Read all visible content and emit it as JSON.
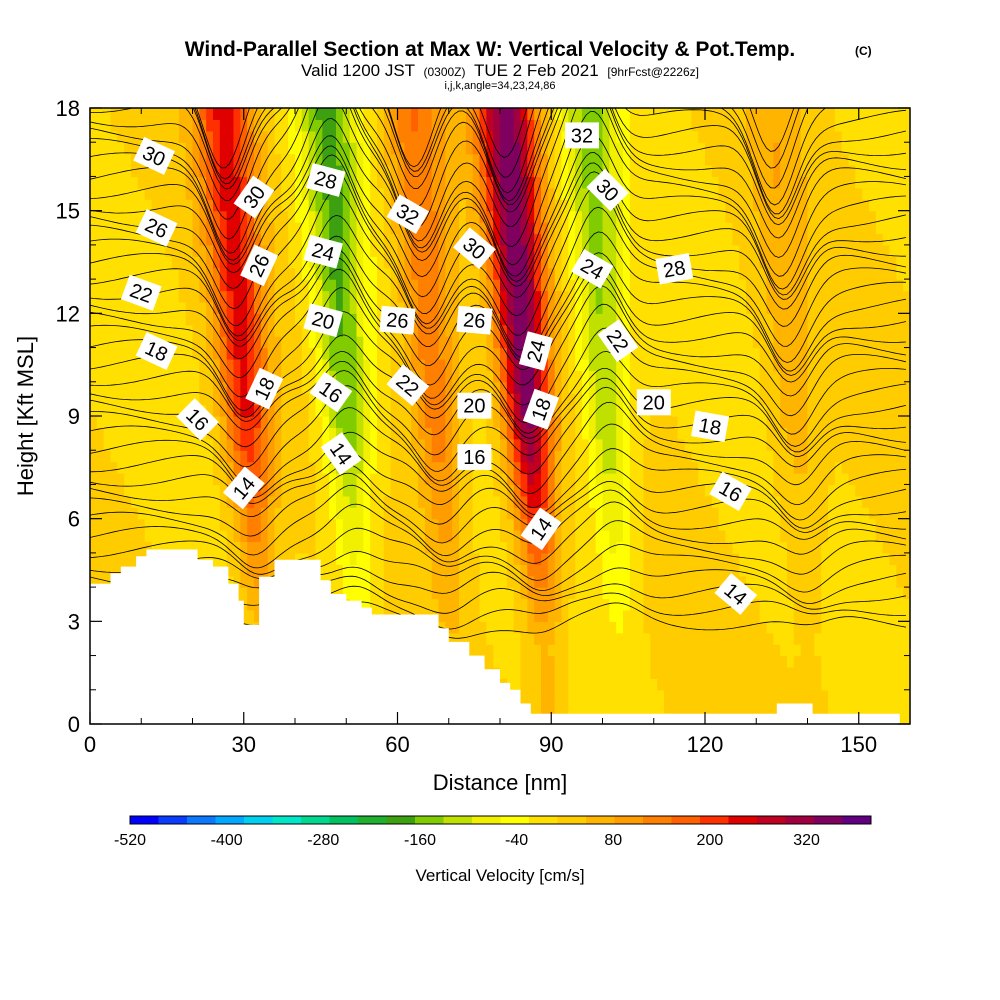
{
  "title": "Wind-Parallel Section at Max W: Vertical Velocity & Pot.Temp.",
  "title_mark": "(C)",
  "subtitle_a": "Valid 1200 JST",
  "subtitle_b": "(0300Z)",
  "subtitle_c": "TUE 2 Feb 2021",
  "subtitle_d": "[9hrFcst@2226z]",
  "subtitle2": "i,j,k,angle=34,23,24,86",
  "colorbar_label": "Vertical Velocity [cm/s]",
  "colors": {
    "background_fill": "#ffd700",
    "terrain": "#ffffff",
    "scale": [
      "#0000ff",
      "#0a3cff",
      "#0a78ff",
      "#00a8ff",
      "#00d0f0",
      "#00e6c8",
      "#00d890",
      "#00c060",
      "#20b030",
      "#3ca010",
      "#80cc00",
      "#c0e000",
      "#f0f000",
      "#ffff00",
      "#ffe000",
      "#ffcc00",
      "#ffb400",
      "#ff9c00",
      "#ff8000",
      "#ff6000",
      "#ff3000",
      "#e00000",
      "#c00020",
      "#a00040",
      "#800060",
      "#600080"
    ]
  },
  "chart_data": {
    "type": "heatmap",
    "xlabel": "Distance [nm]",
    "ylabel": "Height [Kft MSL]",
    "xlim": [
      0,
      160
    ],
    "ylim": [
      0,
      18
    ],
    "xticks": [
      0,
      30,
      60,
      90,
      120,
      150
    ],
    "yticks": [
      0,
      3,
      6,
      9,
      12,
      15,
      18
    ],
    "colorbar_ticks": [
      -520,
      -400,
      -280,
      -160,
      -40,
      80,
      200,
      320
    ],
    "colorbar_range": [
      -520,
      400
    ],
    "updrafts": [
      {
        "x": 33,
        "value": 220
      },
      {
        "x": 52,
        "value": -180
      },
      {
        "x": 70,
        "value": 140
      },
      {
        "x": 88,
        "value": 340
      },
      {
        "x": 103,
        "value": -150
      },
      {
        "x": 140,
        "value": 60
      }
    ],
    "terrain": [
      [
        0,
        4.1
      ],
      [
        4,
        4.4
      ],
      [
        6,
        4.6
      ],
      [
        9,
        4.9
      ],
      [
        11,
        5.1
      ],
      [
        20,
        5.1
      ],
      [
        21,
        4.8
      ],
      [
        24,
        4.6
      ],
      [
        27,
        4.1
      ],
      [
        29,
        3.6
      ],
      [
        30,
        2.9
      ],
      [
        33,
        2.9
      ],
      [
        33,
        4.3
      ],
      [
        36,
        4.8
      ],
      [
        42,
        4.8
      ],
      [
        45,
        4.2
      ],
      [
        47,
        3.8
      ],
      [
        50,
        3.6
      ],
      [
        53,
        3.4
      ],
      [
        55,
        3.2
      ],
      [
        65,
        3.2
      ],
      [
        68,
        2.8
      ],
      [
        70,
        2.4
      ],
      [
        74,
        2.0
      ],
      [
        77,
        1.6
      ],
      [
        80,
        1.2
      ],
      [
        82,
        1.0
      ],
      [
        84,
        0.6
      ],
      [
        86,
        0.3
      ],
      [
        130,
        0.3
      ],
      [
        134,
        0.6
      ],
      [
        140,
        0.6
      ],
      [
        141,
        0.3
      ],
      [
        158,
        0.3
      ]
    ],
    "contour_labels": [
      {
        "text": "30",
        "x": 12.5,
        "y": 16.6,
        "angle": 25
      },
      {
        "text": "26",
        "x": 13,
        "y": 14.5,
        "angle": 25
      },
      {
        "text": "22",
        "x": 10,
        "y": 12.6,
        "angle": 20
      },
      {
        "text": "18",
        "x": 13,
        "y": 10.9,
        "angle": 25
      },
      {
        "text": "16",
        "x": 21,
        "y": 8.9,
        "angle": 45
      },
      {
        "text": "14",
        "x": 30,
        "y": 6.9,
        "angle": -50
      },
      {
        "text": "30",
        "x": 32,
        "y": 15.4,
        "angle": -55
      },
      {
        "text": "26",
        "x": 33,
        "y": 13.4,
        "angle": -65
      },
      {
        "text": "18",
        "x": 34,
        "y": 9.8,
        "angle": -65
      },
      {
        "text": "28",
        "x": 46,
        "y": 15.9,
        "angle": 15
      },
      {
        "text": "24",
        "x": 45.5,
        "y": 13.8,
        "angle": 15
      },
      {
        "text": "20",
        "x": 45.5,
        "y": 11.8,
        "angle": 15
      },
      {
        "text": "16",
        "x": 47,
        "y": 9.7,
        "angle": 35
      },
      {
        "text": "14",
        "x": 49,
        "y": 7.9,
        "angle": 55
      },
      {
        "text": "32",
        "x": 62,
        "y": 14.9,
        "angle": 30
      },
      {
        "text": "26",
        "x": 60,
        "y": 11.8,
        "angle": 5
      },
      {
        "text": "22",
        "x": 62,
        "y": 9.9,
        "angle": 40
      },
      {
        "text": "30",
        "x": 75,
        "y": 13.9,
        "angle": 40
      },
      {
        "text": "26",
        "x": 75,
        "y": 11.8,
        "angle": 5
      },
      {
        "text": "20",
        "x": 75,
        "y": 9.3,
        "angle": 0
      },
      {
        "text": "16",
        "x": 75,
        "y": 7.8,
        "angle": 0
      },
      {
        "text": "24",
        "x": 87,
        "y": 10.9,
        "angle": -75
      },
      {
        "text": "18",
        "x": 88,
        "y": 9.2,
        "angle": -70
      },
      {
        "text": "14",
        "x": 88,
        "y": 5.7,
        "angle": -55
      },
      {
        "text": "32",
        "x": 96,
        "y": 17.2,
        "angle": 0
      },
      {
        "text": "30",
        "x": 101,
        "y": 15.6,
        "angle": 45
      },
      {
        "text": "24",
        "x": 98,
        "y": 13.3,
        "angle": 30
      },
      {
        "text": "22",
        "x": 103,
        "y": 11.2,
        "angle": 55
      },
      {
        "text": "28",
        "x": 114,
        "y": 13.3,
        "angle": -10
      },
      {
        "text": "20",
        "x": 110,
        "y": 9.4,
        "angle": 0
      },
      {
        "text": "18",
        "x": 121,
        "y": 8.7,
        "angle": 10
      },
      {
        "text": "16",
        "x": 125,
        "y": 6.8,
        "angle": 30
      },
      {
        "text": "14",
        "x": 126,
        "y": 3.8,
        "angle": 40
      }
    ]
  }
}
